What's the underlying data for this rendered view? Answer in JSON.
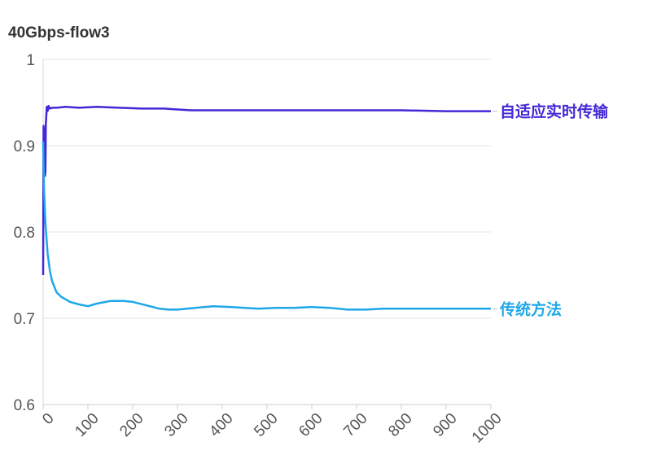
{
  "chart_data": {
    "type": "line",
    "title": "40Gbps-flow3",
    "xlabel": "",
    "ylabel": "",
    "xlim": [
      0,
      1000
    ],
    "ylim": [
      0.6,
      1.0
    ],
    "x_ticks": [
      "0",
      "100",
      "200",
      "300",
      "400",
      "500",
      "600",
      "700",
      "800",
      "900",
      "1000"
    ],
    "y_ticks": [
      "1",
      "0.9",
      "0.8",
      "0.7",
      "0.6"
    ],
    "grid": "horizontal",
    "legend": "inline labels at right end of lines",
    "series": [
      {
        "name": "自适应实时传输",
        "color": "#4527d6",
        "x": [
          0,
          1,
          2,
          3,
          4,
          5,
          6,
          7,
          8,
          10,
          12,
          15,
          20,
          30,
          50,
          80,
          120,
          170,
          220,
          270,
          300,
          330,
          400,
          500,
          600,
          700,
          800,
          900,
          1000
        ],
        "y": [
          0.75,
          0.923,
          0.91,
          0.92,
          0.865,
          0.87,
          0.925,
          0.935,
          0.945,
          0.94,
          0.946,
          0.943,
          0.944,
          0.944,
          0.945,
          0.944,
          0.945,
          0.944,
          0.943,
          0.943,
          0.942,
          0.941,
          0.941,
          0.941,
          0.941,
          0.941,
          0.941,
          0.94,
          0.94
        ]
      },
      {
        "name": "传统方法",
        "color": "#1ea7e8",
        "x": [
          0,
          2,
          5,
          10,
          15,
          20,
          30,
          40,
          60,
          80,
          100,
          120,
          150,
          180,
          200,
          230,
          260,
          280,
          300,
          340,
          380,
          420,
          480,
          520,
          560,
          600,
          640,
          680,
          720,
          760,
          800,
          850,
          900,
          950,
          1000
        ],
        "y": [
          0.905,
          0.85,
          0.81,
          0.775,
          0.755,
          0.743,
          0.73,
          0.725,
          0.719,
          0.716,
          0.714,
          0.717,
          0.72,
          0.72,
          0.719,
          0.715,
          0.711,
          0.71,
          0.71,
          0.712,
          0.714,
          0.713,
          0.711,
          0.712,
          0.712,
          0.713,
          0.712,
          0.71,
          0.71,
          0.711,
          0.711,
          0.711,
          0.711,
          0.711,
          0.711
        ]
      }
    ]
  }
}
